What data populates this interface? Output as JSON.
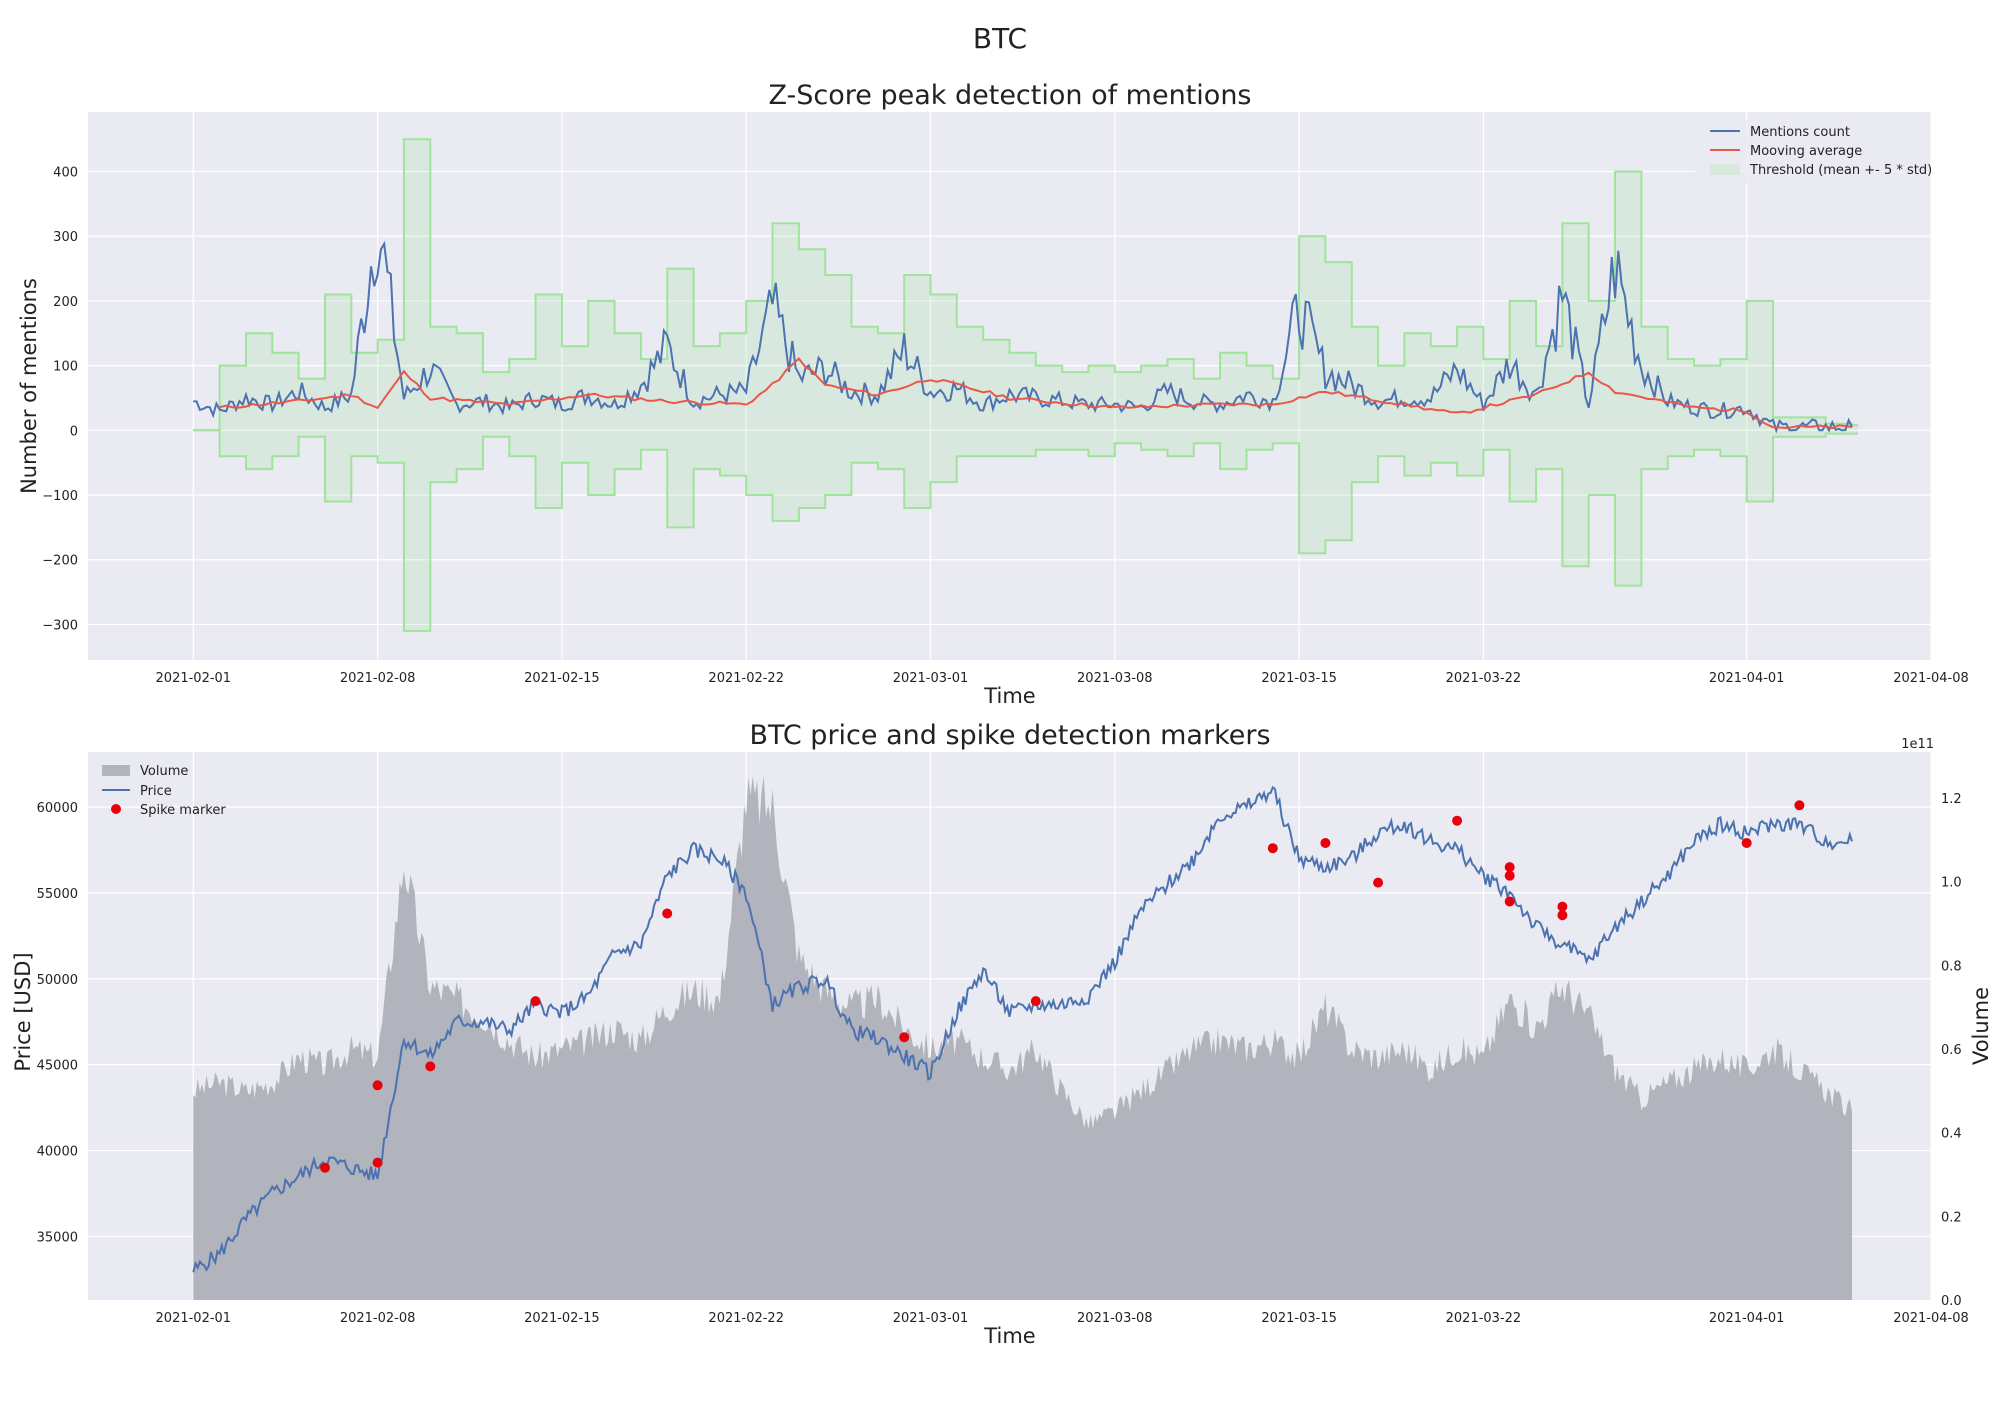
{
  "figure": {
    "suptitle": "BTC"
  },
  "chart_data": [
    {
      "type": "line",
      "title": "Z-Score peak detection of mentions",
      "xlabel": "Time",
      "ylabel": "Number of mentions",
      "ylim": [
        -355,
        492
      ],
      "xlim": [
        "2021-01-28",
        "2021-04-08"
      ],
      "x_ticks": [
        "2021-02-01",
        "2021-02-08",
        "2021-02-15",
        "2021-02-22",
        "2021-03-01",
        "2021-03-08",
        "2021-03-15",
        "2021-03-22",
        "2021-04-01",
        "2021-04-08"
      ],
      "y_ticks": [
        -300,
        -200,
        -100,
        0,
        100,
        200,
        300,
        400
      ],
      "y_tick_labels": [
        "−300",
        "−200",
        "−100",
        "0",
        "100",
        "200",
        "300",
        "400"
      ],
      "grid": true,
      "legend_position": "top-right",
      "series": [
        {
          "name": "Mentions count",
          "color": "#4c72b0",
          "x": [
            "2021-02-01",
            "2021-02-02",
            "2021-02-03",
            "2021-02-04",
            "2021-02-05",
            "2021-02-06",
            "2021-02-07",
            "2021-02-08",
            "2021-02-09",
            "2021-02-10",
            "2021-02-11",
            "2021-02-12",
            "2021-02-13",
            "2021-02-14",
            "2021-02-15",
            "2021-02-16",
            "2021-02-17",
            "2021-02-18",
            "2021-02-19",
            "2021-02-20",
            "2021-02-21",
            "2021-02-22",
            "2021-02-23",
            "2021-02-24",
            "2021-02-25",
            "2021-02-26",
            "2021-02-27",
            "2021-02-28",
            "2021-03-01",
            "2021-03-02",
            "2021-03-03",
            "2021-03-04",
            "2021-03-05",
            "2021-03-06",
            "2021-03-07",
            "2021-03-08",
            "2021-03-09",
            "2021-03-10",
            "2021-03-11",
            "2021-03-12",
            "2021-03-13",
            "2021-03-14",
            "2021-03-15",
            "2021-03-16",
            "2021-03-17",
            "2021-03-18",
            "2021-03-19",
            "2021-03-20",
            "2021-03-21",
            "2021-03-22",
            "2021-03-23",
            "2021-03-24",
            "2021-03-25",
            "2021-03-26",
            "2021-03-27",
            "2021-03-28",
            "2021-03-29",
            "2021-03-30",
            "2021-03-31",
            "2021-04-01",
            "2021-04-02",
            "2021-04-03",
            "2021-04-04",
            "2021-04-05"
          ],
          "values": [
            45,
            30,
            50,
            40,
            60,
            35,
            55,
            330,
            50,
            95,
            40,
            45,
            35,
            50,
            40,
            55,
            40,
            70,
            130,
            45,
            55,
            60,
            190,
            80,
            95,
            60,
            55,
            125,
            60,
            65,
            40,
            55,
            50,
            45,
            40,
            40,
            35,
            60,
            45,
            40,
            55,
            45,
            190,
            90,
            70,
            45,
            50,
            50,
            95,
            40,
            105,
            55,
            210,
            40,
            255,
            100,
            45,
            35,
            30,
            35,
            5,
            5,
            5,
            5
          ]
        },
        {
          "name": "Mooving average",
          "color": "#e8584a",
          "x": [
            "2021-02-02",
            "2021-02-05",
            "2021-02-07",
            "2021-02-08",
            "2021-02-09",
            "2021-02-10",
            "2021-02-13",
            "2021-02-16",
            "2021-02-19",
            "2021-02-22",
            "2021-02-23",
            "2021-02-24",
            "2021-02-25",
            "2021-02-27",
            "2021-03-01",
            "2021-03-04",
            "2021-03-08",
            "2021-03-12",
            "2021-03-14",
            "2021-03-16",
            "2021-03-19",
            "2021-03-21",
            "2021-03-24",
            "2021-03-26",
            "2021-03-27",
            "2021-03-30",
            "2021-04-01",
            "2021-04-02",
            "2021-04-05"
          ],
          "values": [
            35,
            45,
            55,
            35,
            90,
            50,
            40,
            55,
            45,
            40,
            70,
            110,
            70,
            55,
            80,
            50,
            35,
            40,
            40,
            60,
            40,
            25,
            55,
            90,
            60,
            35,
            30,
            5,
            5
          ]
        },
        {
          "name": "Threshold (mean +- 5 * std)",
          "type": "area",
          "color": "#9fe49a",
          "x": [
            "2021-02-01",
            "2021-02-02",
            "2021-02-03",
            "2021-02-04",
            "2021-02-05",
            "2021-02-06",
            "2021-02-07",
            "2021-02-08",
            "2021-02-09",
            "2021-02-10",
            "2021-02-11",
            "2021-02-12",
            "2021-02-13",
            "2021-02-14",
            "2021-02-15",
            "2021-02-16",
            "2021-02-17",
            "2021-02-18",
            "2021-02-19",
            "2021-02-20",
            "2021-02-21",
            "2021-02-22",
            "2021-02-23",
            "2021-02-24",
            "2021-02-25",
            "2021-02-26",
            "2021-02-27",
            "2021-02-28",
            "2021-03-01",
            "2021-03-02",
            "2021-03-03",
            "2021-03-04",
            "2021-03-05",
            "2021-03-06",
            "2021-03-07",
            "2021-03-08",
            "2021-03-09",
            "2021-03-10",
            "2021-03-11",
            "2021-03-12",
            "2021-03-13",
            "2021-03-14",
            "2021-03-15",
            "2021-03-16",
            "2021-03-17",
            "2021-03-18",
            "2021-03-19",
            "2021-03-20",
            "2021-03-21",
            "2021-03-22",
            "2021-03-23",
            "2021-03-24",
            "2021-03-25",
            "2021-03-26",
            "2021-03-27",
            "2021-03-28",
            "2021-03-29",
            "2021-03-30",
            "2021-03-31",
            "2021-04-01",
            "2021-04-02",
            "2021-04-03",
            "2021-04-04",
            "2021-04-05"
          ],
          "upper": [
            0,
            100,
            150,
            120,
            80,
            210,
            120,
            140,
            450,
            160,
            150,
            90,
            110,
            210,
            130,
            200,
            150,
            110,
            250,
            130,
            150,
            200,
            320,
            280,
            240,
            160,
            150,
            240,
            210,
            160,
            140,
            120,
            100,
            90,
            100,
            90,
            100,
            110,
            80,
            120,
            100,
            80,
            300,
            260,
            160,
            100,
            150,
            130,
            160,
            110,
            200,
            130,
            320,
            200,
            400,
            160,
            110,
            100,
            110,
            200,
            20,
            20,
            10,
            8
          ],
          "lower": [
            0,
            -40,
            -60,
            -40,
            -10,
            -110,
            -40,
            -50,
            -310,
            -80,
            -60,
            -10,
            -40,
            -120,
            -50,
            -100,
            -60,
            -30,
            -150,
            -60,
            -70,
            -100,
            -140,
            -120,
            -100,
            -50,
            -60,
            -120,
            -80,
            -40,
            -40,
            -40,
            -30,
            -30,
            -40,
            -20,
            -30,
            -40,
            -20,
            -60,
            -30,
            -20,
            -190,
            -170,
            -80,
            -40,
            -70,
            -50,
            -70,
            -30,
            -110,
            -60,
            -210,
            -100,
            -240,
            -60,
            -40,
            -30,
            -40,
            -110,
            -10,
            -10,
            -5,
            -5
          ]
        }
      ]
    },
    {
      "type": "line",
      "title": "BTC price and spike detection markers",
      "xlabel": "Time",
      "ylabel": "Price [USD]",
      "ylabel_right": "Volume",
      "ylim": [
        31300,
        63200
      ],
      "y2lim": [
        0,
        1.31
      ],
      "y2_exponent_label": "1e11",
      "xlim": [
        "2021-01-28",
        "2021-04-08"
      ],
      "x_ticks": [
        "2021-02-01",
        "2021-02-08",
        "2021-02-15",
        "2021-02-22",
        "2021-03-01",
        "2021-03-08",
        "2021-03-15",
        "2021-03-22",
        "2021-04-01",
        "2021-04-08"
      ],
      "y_ticks": [
        35000,
        40000,
        45000,
        50000,
        55000,
        60000
      ],
      "y2_ticks": [
        0.0,
        0.2,
        0.4,
        0.6,
        0.8,
        1.0,
        1.2
      ],
      "y2_tick_labels": [
        "0.0",
        "0.2",
        "0.4",
        "0.6",
        "0.8",
        "1.0",
        "1.2"
      ],
      "grid": true,
      "legend_position": "top-left",
      "series": [
        {
          "name": "Volume",
          "type": "area",
          "color": "#b2b4bd",
          "x": [
            "2021-02-01",
            "2021-02-02",
            "2021-02-03",
            "2021-02-04",
            "2021-02-05",
            "2021-02-06",
            "2021-02-07",
            "2021-02-08",
            "2021-02-09",
            "2021-02-10",
            "2021-02-11",
            "2021-02-12",
            "2021-02-13",
            "2021-02-14",
            "2021-02-15",
            "2021-02-16",
            "2021-02-17",
            "2021-02-18",
            "2021-02-19",
            "2021-02-20",
            "2021-02-21",
            "2021-02-22",
            "2021-02-23",
            "2021-02-24",
            "2021-02-25",
            "2021-02-26",
            "2021-02-27",
            "2021-02-28",
            "2021-03-01",
            "2021-03-02",
            "2021-03-03",
            "2021-03-04",
            "2021-03-05",
            "2021-03-06",
            "2021-03-07",
            "2021-03-08",
            "2021-03-09",
            "2021-03-10",
            "2021-03-11",
            "2021-03-12",
            "2021-03-13",
            "2021-03-14",
            "2021-03-15",
            "2021-03-16",
            "2021-03-17",
            "2021-03-18",
            "2021-03-19",
            "2021-03-20",
            "2021-03-21",
            "2021-03-22",
            "2021-03-23",
            "2021-03-24",
            "2021-03-25",
            "2021-03-26",
            "2021-03-27",
            "2021-03-28",
            "2021-03-29",
            "2021-03-30",
            "2021-03-31",
            "2021-04-01",
            "2021-04-02",
            "2021-04-03",
            "2021-04-04",
            "2021-04-05"
          ],
          "values": [
            0.5,
            0.52,
            0.5,
            0.52,
            0.58,
            0.56,
            0.6,
            0.58,
            1.05,
            0.75,
            0.72,
            0.68,
            0.62,
            0.58,
            0.6,
            0.62,
            0.65,
            0.62,
            0.7,
            0.74,
            0.72,
            1.2,
            1.18,
            0.82,
            0.74,
            0.7,
            0.72,
            0.65,
            0.6,
            0.62,
            0.58,
            0.55,
            0.6,
            0.5,
            0.42,
            0.45,
            0.5,
            0.55,
            0.6,
            0.62,
            0.6,
            0.62,
            0.58,
            0.7,
            0.6,
            0.58,
            0.6,
            0.55,
            0.6,
            0.58,
            0.72,
            0.65,
            0.75,
            0.68,
            0.55,
            0.48,
            0.52,
            0.55,
            0.58,
            0.55,
            0.6,
            0.55,
            0.5,
            0.45
          ]
        },
        {
          "name": "Price",
          "color": "#4c72b0",
          "x": [
            "2021-02-01",
            "2021-02-02",
            "2021-02-03",
            "2021-02-04",
            "2021-02-05",
            "2021-02-06",
            "2021-02-07",
            "2021-02-08",
            "2021-02-09",
            "2021-02-10",
            "2021-02-11",
            "2021-02-12",
            "2021-02-13",
            "2021-02-14",
            "2021-02-15",
            "2021-02-16",
            "2021-02-17",
            "2021-02-18",
            "2021-02-19",
            "2021-02-20",
            "2021-02-21",
            "2021-02-22",
            "2021-02-23",
            "2021-02-24",
            "2021-02-25",
            "2021-02-26",
            "2021-02-27",
            "2021-02-28",
            "2021-03-01",
            "2021-03-02",
            "2021-03-03",
            "2021-03-04",
            "2021-03-05",
            "2021-03-06",
            "2021-03-07",
            "2021-03-08",
            "2021-03-09",
            "2021-03-10",
            "2021-03-11",
            "2021-03-12",
            "2021-03-13",
            "2021-03-14",
            "2021-03-15",
            "2021-03-16",
            "2021-03-17",
            "2021-03-18",
            "2021-03-19",
            "2021-03-20",
            "2021-03-21",
            "2021-03-22",
            "2021-03-23",
            "2021-03-24",
            "2021-03-25",
            "2021-03-26",
            "2021-03-27",
            "2021-03-28",
            "2021-03-29",
            "2021-03-30",
            "2021-03-31",
            "2021-04-01",
            "2021-04-02",
            "2021-04-03",
            "2021-04-04",
            "2021-04-05"
          ],
          "values": [
            33000,
            34000,
            36000,
            37500,
            38500,
            39500,
            39000,
            38500,
            46500,
            45500,
            47500,
            47500,
            47000,
            48500,
            48000,
            49000,
            51500,
            52000,
            56000,
            57500,
            57000,
            55000,
            48500,
            49500,
            50000,
            47000,
            46500,
            45500,
            44500,
            48000,
            50500,
            48000,
            48500,
            48500,
            49000,
            51000,
            54000,
            55500,
            57000,
            59500,
            60000,
            61000,
            57000,
            56500,
            57000,
            58500,
            59000,
            58000,
            57500,
            56000,
            55000,
            53000,
            52000,
            51000,
            53000,
            54500,
            56000,
            58000,
            59000,
            58500,
            59000,
            59000,
            58000,
            58000
          ]
        },
        {
          "name": "Spike marker",
          "type": "scatter",
          "color": "#e8000b",
          "x": [
            "2021-02-06",
            "2021-02-08",
            "2021-02-08",
            "2021-02-10",
            "2021-02-14",
            "2021-02-19",
            "2021-02-28",
            "2021-03-05",
            "2021-03-14",
            "2021-03-16",
            "2021-03-18",
            "2021-03-21",
            "2021-03-23",
            "2021-03-23",
            "2021-03-23",
            "2021-03-25",
            "2021-03-25",
            "2021-04-01",
            "2021-04-03"
          ],
          "values": [
            39000,
            39300,
            43800,
            44900,
            48700,
            53800,
            46600,
            48700,
            57600,
            57900,
            55600,
            59200,
            56500,
            56000,
            54500,
            54200,
            53700,
            57900,
            60100
          ]
        }
      ]
    }
  ]
}
